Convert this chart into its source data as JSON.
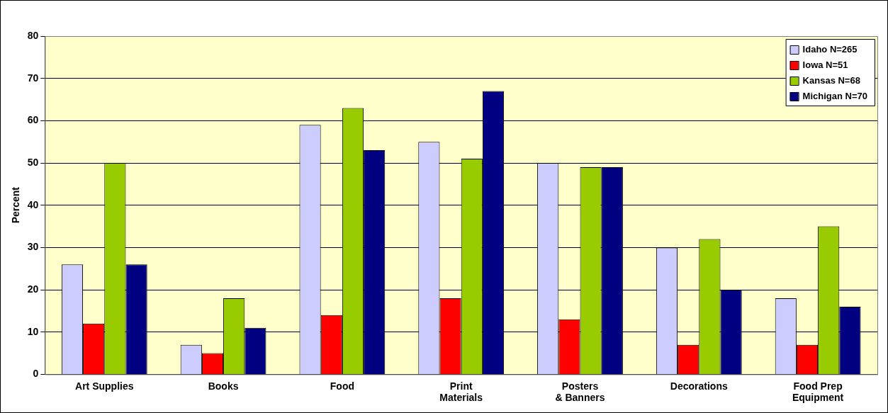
{
  "chart_data": {
    "type": "bar",
    "ylabel": "Percent",
    "categories": [
      "Art Supplies",
      "Books",
      "Food",
      "Print Materials",
      "Posters & Banners",
      "Decorations",
      "Food Prep Equipment"
    ],
    "series": [
      {
        "name": "Idaho N=265",
        "color": "#ccccff",
        "values": [
          26,
          7,
          59,
          55,
          50,
          30,
          18
        ]
      },
      {
        "name": "Iowa N=51",
        "color": "#ff0000",
        "values": [
          12,
          5,
          14,
          18,
          13,
          7,
          7
        ]
      },
      {
        "name": "Kansas N=68",
        "color": "#99cc00",
        "values": [
          50,
          18,
          63,
          51,
          49,
          32,
          35
        ]
      },
      {
        "name": "Michigan N=70",
        "color": "#000080",
        "values": [
          26,
          11,
          53,
          67,
          49,
          20,
          16
        ]
      }
    ],
    "ylim": [
      0,
      80
    ],
    "yticks": [
      0,
      10,
      20,
      30,
      40,
      50,
      60,
      70,
      80
    ],
    "grid": "y",
    "legend": "top right"
  }
}
